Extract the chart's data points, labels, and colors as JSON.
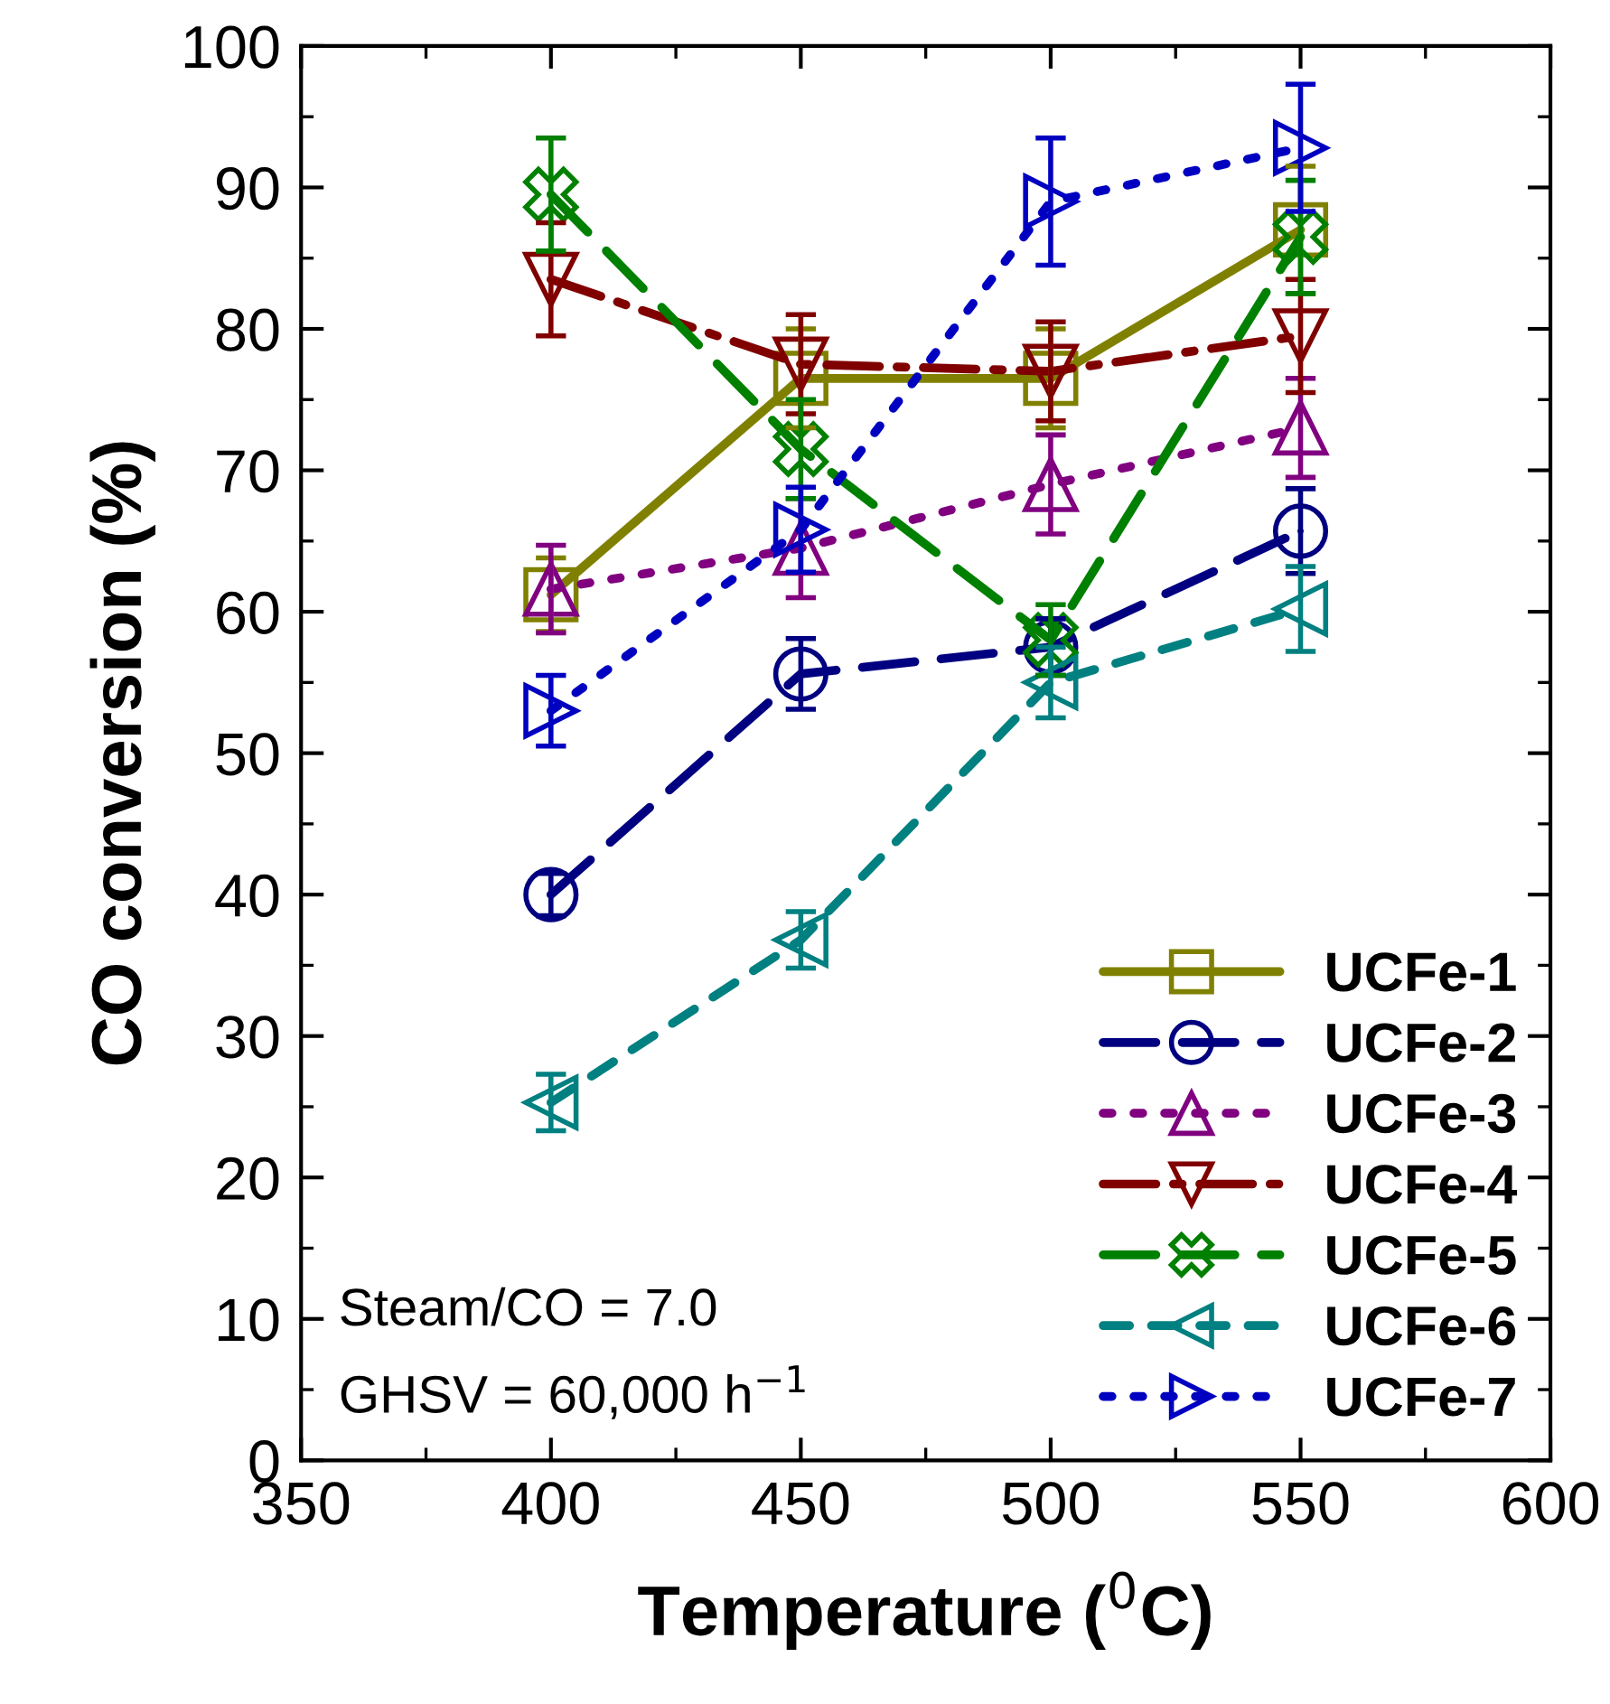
{
  "chart_data": {
    "type": "line",
    "xlabel": "Temperature ($^{0}$C)",
    "ylabel": "CO conversion (%)",
    "x": [
      400,
      450,
      500,
      550
    ],
    "xlim": [
      350,
      600
    ],
    "xticks": [
      350,
      400,
      450,
      500,
      550,
      600
    ],
    "ylim": [
      0,
      100
    ],
    "yticks": [
      0,
      10,
      20,
      30,
      40,
      50,
      60,
      70,
      80,
      90,
      100
    ],
    "grid": false,
    "legend": "bottom right",
    "annotations": [
      "Steam/CO = 7.0",
      "GHSV = 60,000 h$^{−1}$"
    ],
    "series": [
      {
        "name": "UCFe-1",
        "color": "#808000",
        "marker": "square",
        "line_style": "solid",
        "values": [
          61.2,
          76.5,
          76.5,
          87
        ],
        "errors": [
          2.6,
          3.5,
          3.5,
          4.5
        ]
      },
      {
        "name": "UCFe-2",
        "color": "#000080",
        "marker": "circle",
        "line_style": "dashed",
        "values": [
          40,
          55.6,
          57.5,
          65.7
        ],
        "errors": [
          1.5,
          2.5,
          2,
          3
        ]
      },
      {
        "name": "UCFe-3",
        "color": "#800080",
        "marker": "triangle",
        "line_style": "dotted",
        "values": [
          61.6,
          64.5,
          69,
          73
        ],
        "errors": [
          3.1,
          3.5,
          3.5,
          3.5
        ]
      },
      {
        "name": "UCFe-4",
        "color": "#800000",
        "marker": "triangle_down",
        "line_style": "dashdot",
        "values": [
          83.5,
          77.5,
          77,
          79.5
        ],
        "errors": [
          4,
          3.5,
          3.5,
          4
        ]
      },
      {
        "name": "UCFe-5",
        "color": "#008000",
        "marker": "cross",
        "line_style": "dashed",
        "values": [
          89.5,
          71.5,
          58,
          86.5
        ],
        "errors": [
          4,
          3.5,
          2.5,
          4
        ]
      },
      {
        "name": "UCFe-6",
        "color": "#008080",
        "marker": "triangle_left",
        "line_style": "short_dashed",
        "values": [
          25.3,
          36.8,
          55,
          60.2
        ],
        "errors": [
          2,
          2,
          2.5,
          3
        ]
      },
      {
        "name": "UCFe-7",
        "color": "#0000c0",
        "marker": "triangle_right",
        "line_style": "dotted",
        "values": [
          53,
          65.8,
          89,
          92.8
        ],
        "errors": [
          2.5,
          3,
          4.5,
          4.5
        ]
      }
    ]
  }
}
